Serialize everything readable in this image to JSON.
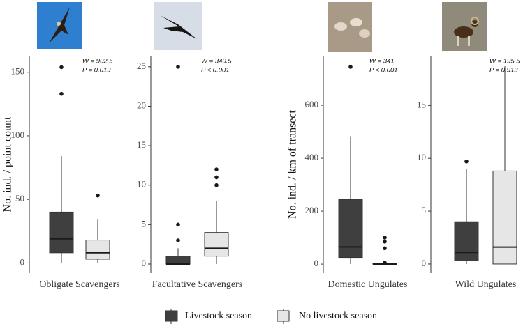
{
  "legend": [
    {
      "name": "Livestock season",
      "color": "#3f3f3f"
    },
    {
      "name": "No livestock season",
      "color": "#e6e6e6"
    }
  ],
  "chart_data": [
    {
      "type": "box",
      "ylabel": "No. ind. / point count",
      "xlabel": "Obligate Scavengers",
      "stats": [
        "W = 902.5",
        "P = 0.019"
      ],
      "ylim": [
        -8,
        163
      ],
      "yticks": [
        0,
        50,
        100,
        150
      ],
      "boxes": [
        {
          "low": 0,
          "q1": 8,
          "median": 19,
          "q3": 40,
          "high": 84,
          "outliers": [
            133,
            154
          ]
        },
        {
          "low": 0,
          "q1": 3,
          "median": 8,
          "q3": 18,
          "high": 34,
          "outliers": [
            53
          ]
        }
      ]
    },
    {
      "type": "box",
      "xlabel": "Facultative Scavengers",
      "stats": [
        "W = 340.5",
        "P < 0.001"
      ],
      "ylim": [
        -1.15,
        26.4
      ],
      "yticks": [
        0,
        5,
        10,
        15,
        20,
        25
      ],
      "boxes": [
        {
          "low": 0,
          "q1": 0,
          "median": 0,
          "q3": 1,
          "high": 2,
          "outliers": [
            3,
            5,
            25
          ]
        },
        {
          "low": 0,
          "q1": 1,
          "median": 2,
          "q3": 4,
          "high": 8,
          "outliers": [
            10,
            11,
            12
          ]
        }
      ]
    },
    {
      "type": "box",
      "ylabel": "No. ind. / km of transect",
      "xlabel": "Domestic Ungulates",
      "stats": [
        "W = 341",
        "P < 0.001"
      ],
      "ylim": [
        -34,
        787
      ],
      "yticks": [
        0,
        200,
        400,
        600
      ],
      "boxes": [
        {
          "low": 0,
          "q1": 25,
          "median": 65,
          "q3": 245,
          "high": 483,
          "outliers": [
            745
          ]
        },
        {
          "low": 0,
          "q1": 0,
          "median": 0,
          "q3": 2,
          "high": 4,
          "outliers": [
            5,
            60,
            85,
            100
          ]
        }
      ]
    },
    {
      "type": "box",
      "xlabel": "Wild Ungulates",
      "stats": [
        "W = 195.5",
        "P = 0.913"
      ],
      "ylim": [
        -0.86,
        19.7
      ],
      "yticks": [
        0,
        5,
        10,
        15
      ],
      "boxes": [
        {
          "low": 0,
          "q1": 0.3,
          "median": 1.1,
          "q3": 4,
          "high": 9,
          "outliers": [
            9.7
          ]
        },
        {
          "low": 0,
          "q1": 0,
          "median": 1.6,
          "q3": 8.8,
          "high": 18.7,
          "outliers": []
        }
      ]
    }
  ]
}
